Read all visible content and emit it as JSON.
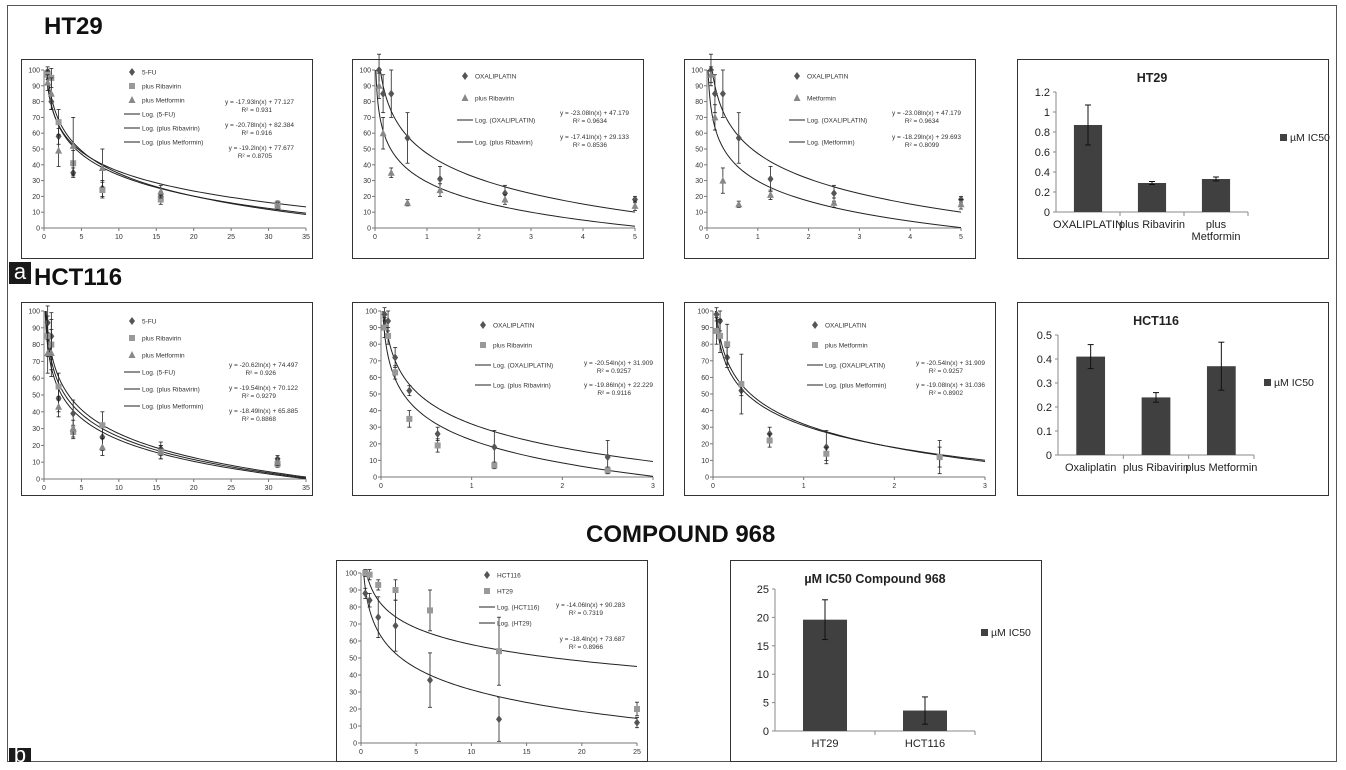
{
  "labels": {
    "row_a": "HT29",
    "row_b": "HCT116",
    "row_c": "COMPOUND 968",
    "tag_a": "a",
    "tag_b": "b"
  },
  "chart_data": [
    {
      "id": "ht29-5fu",
      "type": "scatter",
      "xlim": [
        0,
        35
      ],
      "xticks": [
        0,
        5,
        10,
        15,
        20,
        25,
        30,
        35
      ],
      "ylim": [
        0,
        100
      ],
      "yticks": [
        0,
        10,
        20,
        30,
        40,
        50,
        60,
        70,
        80,
        90,
        100
      ],
      "series": [
        {
          "name": "5-FU",
          "marker": "diamond",
          "color": "#555555",
          "x": [
            0.49,
            0.98,
            1.95,
            3.9,
            7.8,
            15.6,
            31.2
          ],
          "y": [
            99,
            80,
            58,
            35,
            25,
            20,
            15
          ],
          "err": [
            3,
            5,
            5,
            3,
            5,
            3,
            2
          ]
        },
        {
          "name": "plus Ribavirin",
          "marker": "square",
          "color": "#999999",
          "x": [
            0.49,
            0.98,
            1.95,
            3.9,
            7.8,
            15.6,
            31.2
          ],
          "y": [
            97,
            95,
            67,
            41,
            24,
            18,
            15
          ],
          "err": [
            3,
            6,
            8,
            8,
            5,
            3,
            2
          ]
        },
        {
          "name": "plus Metformin",
          "marker": "triangle",
          "color": "#888888",
          "x": [
            0.49,
            0.98,
            1.95,
            3.9,
            7.8,
            15.6,
            31.2
          ],
          "y": [
            92,
            85,
            49,
            52,
            38,
            23,
            14
          ],
          "err": [
            5,
            10,
            10,
            18,
            12,
            4,
            2
          ]
        }
      ],
      "fits": [
        {
          "name": "Log. (5-FU)",
          "a": -17.93,
          "b": 77.127,
          "eq": "y = -17.93ln(x) + 77.127",
          "r2": "R² = 0.931"
        },
        {
          "name": "Log. (plus Ribavirin)",
          "a": -20.78,
          "b": 82.384,
          "eq": "y = -20.78ln(x) + 82.384",
          "r2": "R² = 0.916"
        },
        {
          "name": "Log. (plus Metformin)",
          "a": -19.2,
          "b": 77.677,
          "eq": "y = -19.2ln(x) + 77.677",
          "r2": "R² = 0.8705"
        }
      ]
    },
    {
      "id": "ht29-oxa-rib",
      "type": "scatter",
      "xlim": [
        0,
        5
      ],
      "xticks": [
        0,
        1,
        2,
        3,
        4,
        5
      ],
      "ylim": [
        0,
        100
      ],
      "yticks": [
        0,
        10,
        20,
        30,
        40,
        50,
        60,
        70,
        80,
        90,
        100
      ],
      "series": [
        {
          "name": "OXALIPLATIN",
          "marker": "diamond",
          "color": "#555555",
          "x": [
            0.078,
            0.156,
            0.3125,
            0.625,
            1.25,
            2.5,
            5
          ],
          "y": [
            100,
            85,
            85,
            57,
            31,
            22,
            18
          ],
          "err": [
            10,
            12,
            15,
            16,
            8,
            5,
            2
          ]
        },
        {
          "name": "plus Ribavirin",
          "marker": "triangle",
          "color": "#888888",
          "x": [
            0.078,
            0.156,
            0.3125,
            0.625,
            1.25,
            2.5,
            5
          ],
          "y": [
            90,
            60,
            35,
            16,
            24,
            18,
            14
          ],
          "err": [
            8,
            10,
            3,
            2,
            4,
            3,
            3
          ]
        }
      ],
      "fits": [
        {
          "name": "Log. (OXALIPLATIN)",
          "a": -23.08,
          "b": 47.179,
          "eq": "y = -23.08ln(x) + 47.179",
          "r2": "R² = 0.9634"
        },
        {
          "name": "Log. (plus Ribavirin)",
          "a": -17.41,
          "b": 29.133,
          "eq": "y = -17.41ln(x) + 29.133",
          "r2": "R² = 0.8536"
        }
      ]
    },
    {
      "id": "ht29-oxa-met",
      "type": "scatter",
      "xlim": [
        0,
        5
      ],
      "xticks": [
        0,
        1,
        2,
        3,
        4,
        5
      ],
      "ylim": [
        0,
        100
      ],
      "yticks": [
        0,
        10,
        20,
        30,
        40,
        50,
        60,
        70,
        80,
        90,
        100
      ],
      "series": [
        {
          "name": "OXALIPLATIN",
          "marker": "diamond",
          "color": "#555555",
          "x": [
            0.078,
            0.156,
            0.3125,
            0.625,
            1.25,
            2.5,
            5
          ],
          "y": [
            100,
            85,
            85,
            57,
            31,
            22,
            18
          ],
          "err": [
            10,
            12,
            15,
            16,
            8,
            5,
            2
          ]
        },
        {
          "name": "Metformin",
          "marker": "triangle",
          "color": "#888888",
          "x": [
            0.078,
            0.156,
            0.3125,
            0.625,
            1.25,
            2.5,
            5
          ],
          "y": [
            97,
            70,
            30,
            15,
            21,
            16,
            15
          ],
          "err": [
            5,
            8,
            8,
            2,
            3,
            3,
            3
          ]
        }
      ],
      "fits": [
        {
          "name": "Log. (OXALIPLATIN)",
          "a": -23.08,
          "b": 47.179,
          "eq": "y = -23.08ln(x) + 47.179",
          "r2": "R² = 0.9634"
        },
        {
          "name": "Log. (Metformin)",
          "a": -18.29,
          "b": 29.693,
          "eq": "y = -18.29ln(x) + 29.693",
          "r2": "R² = 0.8099"
        }
      ]
    },
    {
      "id": "ht29-ic50",
      "type": "bar",
      "title": "HT29",
      "categories": [
        "OXALIPLATIN",
        "plus Ribavirin",
        "plus\nMetformin"
      ],
      "series": [
        {
          "name": "µM IC50",
          "color": "#404040",
          "values": [
            0.87,
            0.29,
            0.33
          ],
          "err": [
            0.2,
            0.015,
            0.02
          ]
        }
      ],
      "ylim": [
        0,
        1.2
      ],
      "yticks": [
        0,
        0.2,
        0.4,
        0.6,
        0.8,
        1,
        1.2
      ],
      "ytick_labels": [
        "0",
        "0.2",
        "0.4",
        "0.6",
        "0.8",
        "1",
        "1.2"
      ],
      "legend": "right"
    },
    {
      "id": "hct116-5fu",
      "type": "scatter",
      "xlim": [
        0,
        35
      ],
      "xticks": [
        0,
        5,
        10,
        15,
        20,
        25,
        30,
        35
      ],
      "ylim": [
        0,
        100
      ],
      "yticks": [
        0,
        10,
        20,
        30,
        40,
        50,
        60,
        70,
        80,
        90,
        100
      ],
      "series": [
        {
          "name": "5-FU",
          "marker": "diamond",
          "color": "#555555",
          "x": [
            0.49,
            0.98,
            1.95,
            3.9,
            7.8,
            15.6,
            31.2
          ],
          "y": [
            93,
            85,
            48,
            39,
            25,
            18,
            12
          ],
          "err": [
            10,
            14,
            8,
            8,
            8,
            4,
            2
          ]
        },
        {
          "name": "plus Ribavirin",
          "marker": "square",
          "color": "#999999",
          "x": [
            0.49,
            0.98,
            1.95,
            3.9,
            7.8,
            15.6,
            31.2
          ],
          "y": [
            85,
            80,
            55,
            28,
            32,
            16,
            9
          ],
          "err": [
            12,
            15,
            8,
            4,
            8,
            4,
            2
          ]
        },
        {
          "name": "plus Metformin",
          "marker": "triangle",
          "color": "#888888",
          "x": [
            0.49,
            0.98,
            1.95,
            3.9,
            7.8,
            15.6,
            31.2
          ],
          "y": [
            75,
            75,
            43,
            30,
            19,
            16,
            10
          ],
          "err": [
            12,
            14,
            6,
            5,
            5,
            4,
            2
          ]
        }
      ],
      "fits": [
        {
          "name": "Log. (5-FU)",
          "a": -20.62,
          "b": 74.497,
          "eq": "y = -20.62ln(x) + 74.497",
          "r2": "R² = 0.926"
        },
        {
          "name": "Log. (plus Ribavirin)",
          "a": -19.54,
          "b": 70.122,
          "eq": "y = -19.54ln(x) + 70.122",
          "r2": "R² = 0.9279"
        },
        {
          "name": "Log. (plus Metformin)",
          "a": -18.49,
          "b": 65.885,
          "eq": "y = -18.49ln(x) + 65.885",
          "r2": "R² = 0.8868"
        }
      ]
    },
    {
      "id": "hct116-oxa-rib",
      "type": "scatter",
      "xlim": [
        0,
        3
      ],
      "xticks": [
        0,
        1,
        2,
        3
      ],
      "ylim": [
        0,
        100
      ],
      "yticks": [
        0,
        10,
        20,
        30,
        40,
        50,
        60,
        70,
        80,
        90,
        100
      ],
      "series": [
        {
          "name": "OXALIPLATIN",
          "marker": "diamond",
          "color": "#555555",
          "x": [
            0.039,
            0.078,
            0.156,
            0.3125,
            0.625,
            1.25,
            2.5
          ],
          "y": [
            98,
            94,
            72,
            52,
            26,
            18,
            12
          ],
          "err": [
            4,
            6,
            6,
            3,
            4,
            10,
            10
          ]
        },
        {
          "name": "plus Ribavirin",
          "marker": "square",
          "color": "#999999",
          "x": [
            0.039,
            0.078,
            0.156,
            0.3125,
            0.625,
            1.25,
            2.5
          ],
          "y": [
            90,
            85,
            63,
            35,
            19,
            7,
            4
          ],
          "err": [
            6,
            5,
            4,
            5,
            4,
            2,
            2
          ]
        }
      ],
      "fits": [
        {
          "name": "Log. (OXALIPLATIN)",
          "a": -20.54,
          "b": 31.909,
          "eq": "y = -20.54ln(x) + 31.909",
          "r2": "R² = 0.9257"
        },
        {
          "name": "Log. (plus Ribavirin)",
          "a": -19.86,
          "b": 22.229,
          "eq": "y = -19.86ln(x) + 22.229",
          "r2": "R² = 0.9116"
        }
      ]
    },
    {
      "id": "hct116-oxa-met",
      "type": "scatter",
      "xlim": [
        0,
        3
      ],
      "xticks": [
        0,
        1,
        2,
        3
      ],
      "ylim": [
        0,
        100
      ],
      "yticks": [
        0,
        10,
        20,
        30,
        40,
        50,
        60,
        70,
        80,
        90,
        100
      ],
      "series": [
        {
          "name": "OXALIPLATIN",
          "marker": "diamond",
          "color": "#555555",
          "x": [
            0.039,
            0.078,
            0.156,
            0.3125,
            0.625,
            1.25,
            2.5
          ],
          "y": [
            98,
            94,
            72,
            52,
            26,
            18,
            12
          ],
          "err": [
            4,
            6,
            6,
            3,
            4,
            10,
            10
          ]
        },
        {
          "name": "plus Metformin",
          "marker": "square",
          "color": "#999999",
          "x": [
            0.039,
            0.078,
            0.156,
            0.3125,
            0.625,
            1.25,
            2.5
          ],
          "y": [
            88,
            85,
            80,
            56,
            22,
            14,
            12
          ],
          "err": [
            8,
            10,
            12,
            18,
            4,
            4,
            6
          ]
        }
      ],
      "fits": [
        {
          "name": "Log. (OXALIPLATIN)",
          "a": -20.54,
          "b": 31.909,
          "eq": "y = -20.54ln(x) + 31.909",
          "r2": "R² = 0.9257"
        },
        {
          "name": "Log. (plus Metformin)",
          "a": -19.08,
          "b": 31.036,
          "eq": "y = -19.08ln(x) + 31.036",
          "r2": "R² = 0.8902"
        }
      ]
    },
    {
      "id": "hct116-ic50",
      "type": "bar",
      "title": "HCT116",
      "categories": [
        "Oxaliplatin",
        "plus Ribavirin",
        "plus Metformin"
      ],
      "series": [
        {
          "name": "µM IC50",
          "color": "#404040",
          "values": [
            0.41,
            0.24,
            0.37
          ],
          "err": [
            0.05,
            0.02,
            0.1
          ]
        }
      ],
      "ylim": [
        0,
        0.5
      ],
      "yticks": [
        0,
        0.1,
        0.2,
        0.3,
        0.4,
        0.5
      ],
      "ytick_labels": [
        "0",
        "0.1",
        "0.2",
        "0.3",
        "0.4",
        "0.5"
      ],
      "legend": "right"
    },
    {
      "id": "compound968",
      "type": "scatter",
      "xlim": [
        0,
        25
      ],
      "xticks": [
        0,
        5,
        10,
        15,
        20,
        25
      ],
      "ylim": [
        0,
        100
      ],
      "yticks": [
        0,
        10,
        20,
        30,
        40,
        50,
        60,
        70,
        80,
        90,
        100
      ],
      "series": [
        {
          "name": "HCT116",
          "marker": "diamond",
          "color": "#555555",
          "x": [
            0.39,
            0.78,
            1.56,
            3.125,
            6.25,
            12.5,
            25
          ],
          "y": [
            88,
            84,
            74,
            69,
            37,
            14,
            12
          ],
          "err": [
            3,
            4,
            12,
            15,
            16,
            13,
            3
          ]
        },
        {
          "name": "HT29",
          "marker": "square",
          "color": "#999999",
          "x": [
            0.39,
            0.78,
            1.56,
            3.125,
            6.25,
            12.5,
            25
          ],
          "y": [
            100,
            99,
            93,
            90,
            78,
            54,
            20
          ],
          "err": [
            2,
            3,
            3,
            6,
            12,
            20,
            4
          ]
        }
      ],
      "fits": [
        {
          "name": "Log. (HCT116)",
          "a": -14.06,
          "b": 90.283,
          "eq": "y = -14.06ln(x) + 90.283",
          "r2": "R² = 0.7319"
        },
        {
          "name": "Log. (HT29)",
          "a": -18.4,
          "b": 73.687,
          "eq": "y = -18.4ln(x) + 73.687",
          "r2": "R² = 0.8966"
        }
      ]
    },
    {
      "id": "compound968-ic50",
      "type": "bar",
      "title": "µM IC50 Compound 968",
      "categories": [
        "HT29",
        "HCT116"
      ],
      "series": [
        {
          "name": "µM IC50",
          "color": "#404040",
          "values": [
            19.6,
            3.6
          ],
          "err": [
            3.5,
            2.4
          ]
        }
      ],
      "ylim": [
        0,
        25
      ],
      "yticks": [
        0,
        5,
        10,
        15,
        20,
        25
      ],
      "ytick_labels": [
        "0",
        "5",
        "10",
        "15",
        "20",
        "25"
      ],
      "legend": "right"
    }
  ]
}
